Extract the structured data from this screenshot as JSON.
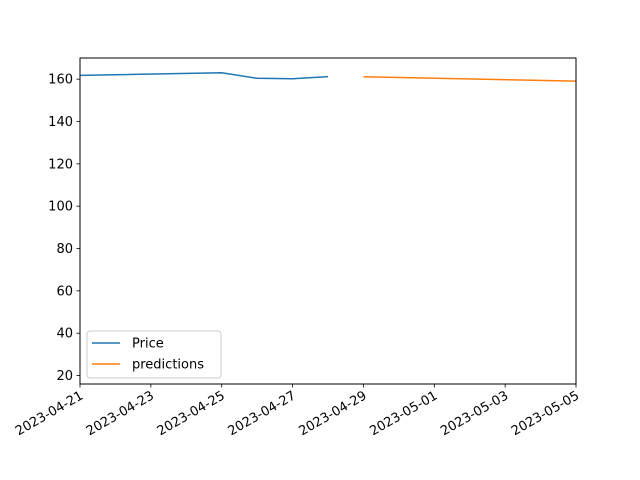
{
  "chart_data": {
    "type": "line",
    "title": "",
    "xlabel": "",
    "ylabel": "",
    "xlim": [
      "2023-04-21",
      "2023-05-05"
    ],
    "ylim": [
      16,
      170
    ],
    "x_ticks": [
      "2023-04-21",
      "2023-04-23",
      "2023-04-25",
      "2023-04-27",
      "2023-04-29",
      "2023-05-01",
      "2023-05-03",
      "2023-05-05"
    ],
    "y_ticks": [
      20,
      40,
      60,
      80,
      100,
      120,
      140,
      160
    ],
    "grid": false,
    "legend_position": "lower-left",
    "series": [
      {
        "name": "Price",
        "color": "#1f77b4",
        "points": [
          {
            "x": "2023-04-21",
            "y": 161.8
          },
          {
            "x": "2023-04-25",
            "y": 163.0
          },
          {
            "x": "2023-04-26",
            "y": 160.4
          },
          {
            "x": "2023-04-27",
            "y": 160.2
          },
          {
            "x": "2023-04-28",
            "y": 161.2
          }
        ]
      },
      {
        "name": "predictions",
        "color": "#ff7f0e",
        "points": [
          {
            "x": "2023-04-29",
            "y": 161.1
          },
          {
            "x": "2023-05-05",
            "y": 159.1
          }
        ]
      }
    ]
  }
}
